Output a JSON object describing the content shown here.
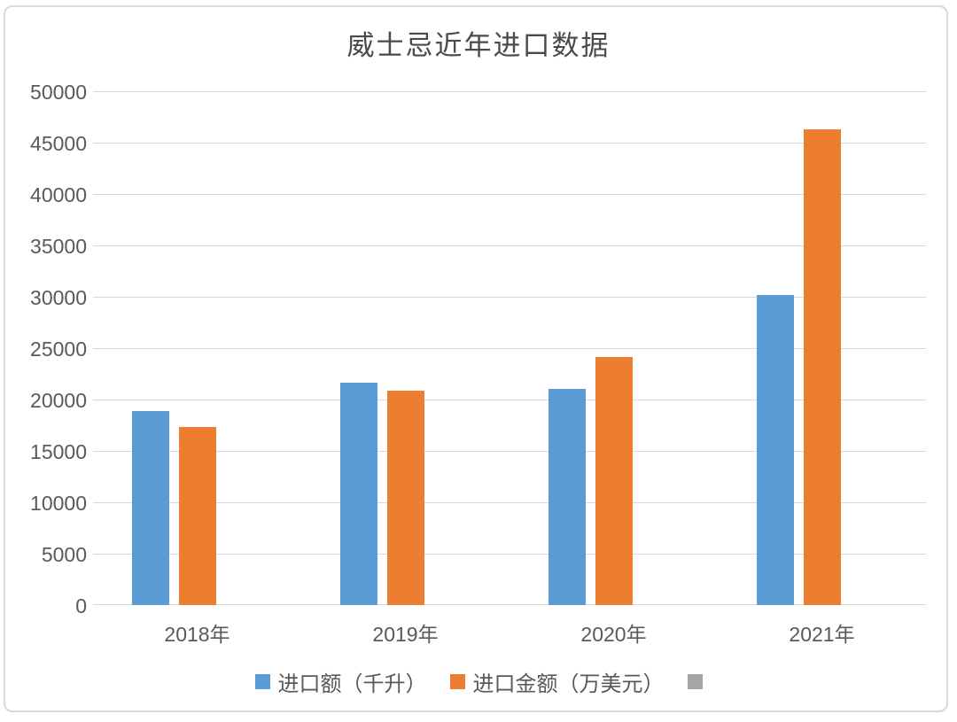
{
  "page": {
    "background": "#ffffff",
    "card_border_color": "#d9d9d9"
  },
  "chart_data": {
    "type": "bar",
    "title": "威士忌近年进口数据",
    "title_color": "#4a4a4a",
    "categories": [
      "2018年",
      "2019年",
      "2020年",
      "2021年"
    ],
    "series": [
      {
        "key": "import-volume",
        "name": "进口额（千升）",
        "color": "#5B9BD5",
        "values": [
          18900,
          21600,
          21000,
          30200
        ]
      },
      {
        "key": "import-amount",
        "name": "进口金额（万美元）",
        "color": "#ED7D31",
        "values": [
          17300,
          20900,
          24100,
          46300
        ]
      },
      {
        "key": "unlabeled-series",
        "name": "",
        "color": "#A5A5A5",
        "values": [
          0,
          0,
          0,
          0
        ]
      }
    ],
    "xlabel": "",
    "ylabel": "",
    "ylim": [
      0,
      50000
    ],
    "ytick_step": 5000,
    "ytick_labels": [
      "0",
      "5000",
      "10000",
      "15000",
      "20000",
      "25000",
      "30000",
      "35000",
      "40000",
      "45000",
      "50000"
    ],
    "grid": "horizontal",
    "gridline_color": "#d9d9d9",
    "axis_text_color": "#595959",
    "legend_position": "bottom"
  }
}
